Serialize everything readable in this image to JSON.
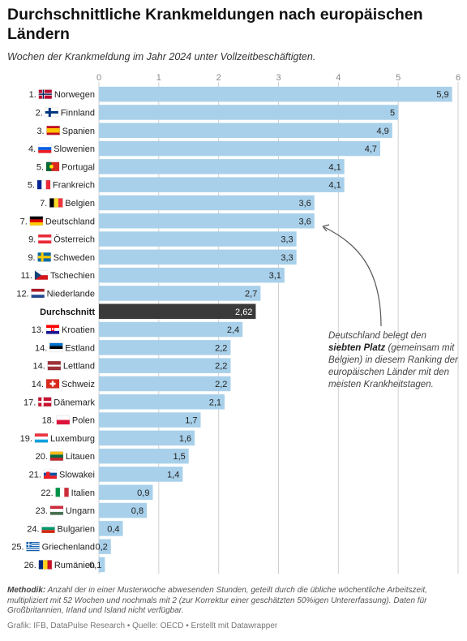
{
  "header": {
    "title": "Durchschnittliche Krankmeldungen nach europäischen Ländern",
    "subtitle": "Wochen der Krankmeldung im Jahr 2024 unter Vollzeitbeschäftigten."
  },
  "annotation": {
    "pre": "Deutschland belegt den",
    "bold": "siebten Platz",
    "post": "(gemeinsam mit Belgien) in diesem Ranking der europäischen Länder mit den meisten Krankheitstagen."
  },
  "footer": {
    "methodik_label": "Methodik:",
    "methodik_text": "Anzahl der in einer Musterwoche abwesenden Stunden, geteilt durch die übliche wöchentliche Arbeitszeit, multipliziert mit 52 Wochen und nochmals mit 2 (zur Korrektur einer geschätzten 50%igen Untererfassung). Daten für Großbritannien, Irland und Island nicht verfügbar.",
    "credit": "Grafik: IFB, DataPulse Research • Quelle: OECD • Erstellt mit Datawrapper"
  },
  "colors": {
    "bar": "#a8d0ea",
    "highlight": "#3a3a3a",
    "grid": "#d0d0d0"
  },
  "chart_data": {
    "type": "bar",
    "orientation": "horizontal",
    "xlim": [
      0,
      6
    ],
    "xticks": [
      "0",
      "1",
      "2",
      "3",
      "4",
      "5",
      "6"
    ],
    "categories": [
      {
        "rank": "1.",
        "name": "Norwegen",
        "value": 5.9,
        "label": "5,9",
        "flag": "flag-norway"
      },
      {
        "rank": "2.",
        "name": "Finnland",
        "value": 5.0,
        "label": "5",
        "flag": "flag-finland"
      },
      {
        "rank": "3.",
        "name": "Spanien",
        "value": 4.9,
        "label": "4,9",
        "flag": "flag-spain"
      },
      {
        "rank": "4.",
        "name": "Slowenien",
        "value": 4.7,
        "label": "4,7",
        "flag": "flag-slovenia"
      },
      {
        "rank": "5.",
        "name": "Portugal",
        "value": 4.1,
        "label": "4,1",
        "flag": "flag-portugal"
      },
      {
        "rank": "5.",
        "name": "Frankreich",
        "value": 4.1,
        "label": "4,1",
        "flag": "flag-france"
      },
      {
        "rank": "7.",
        "name": "Belgien",
        "value": 3.6,
        "label": "3,6",
        "flag": "flag-belgium"
      },
      {
        "rank": "7.",
        "name": "Deutschland",
        "value": 3.6,
        "label": "3,6",
        "flag": "flag-germany"
      },
      {
        "rank": "9.",
        "name": "Österreich",
        "value": 3.3,
        "label": "3,3",
        "flag": "flag-austria"
      },
      {
        "rank": "9.",
        "name": "Schweden",
        "value": 3.3,
        "label": "3,3",
        "flag": "flag-sweden"
      },
      {
        "rank": "11.",
        "name": "Tschechien",
        "value": 3.1,
        "label": "3,1",
        "flag": "flag-czechia"
      },
      {
        "rank": "12.",
        "name": "Niederlande",
        "value": 2.7,
        "label": "2,7",
        "flag": "flag-netherlands"
      },
      {
        "rank": "",
        "name": "Durchschnitt",
        "value": 2.62,
        "label": "2,62",
        "flag": "",
        "highlight": true
      },
      {
        "rank": "13.",
        "name": "Kroatien",
        "value": 2.4,
        "label": "2,4",
        "flag": "flag-croatia"
      },
      {
        "rank": "14.",
        "name": "Estland",
        "value": 2.2,
        "label": "2,2",
        "flag": "flag-estonia"
      },
      {
        "rank": "14.",
        "name": "Lettland",
        "value": 2.2,
        "label": "2,2",
        "flag": "flag-latvia"
      },
      {
        "rank": "14.",
        "name": "Schweiz",
        "value": 2.2,
        "label": "2,2",
        "flag": "flag-switzerland"
      },
      {
        "rank": "17.",
        "name": "Dänemark",
        "value": 2.1,
        "label": "2,1",
        "flag": "flag-denmark"
      },
      {
        "rank": "18.",
        "name": "Polen",
        "value": 1.7,
        "label": "1,7",
        "flag": "flag-poland"
      },
      {
        "rank": "19.",
        "name": "Luxemburg",
        "value": 1.6,
        "label": "1,6",
        "flag": "flag-luxembourg"
      },
      {
        "rank": "20.",
        "name": "Litauen",
        "value": 1.5,
        "label": "1,5",
        "flag": "flag-lithuania"
      },
      {
        "rank": "21.",
        "name": "Slowakei",
        "value": 1.4,
        "label": "1,4",
        "flag": "flag-slovakia"
      },
      {
        "rank": "22.",
        "name": "Italien",
        "value": 0.9,
        "label": "0,9",
        "flag": "flag-italy"
      },
      {
        "rank": "23.",
        "name": "Ungarn",
        "value": 0.8,
        "label": "0,8",
        "flag": "flag-hungary"
      },
      {
        "rank": "24.",
        "name": "Bulgarien",
        "value": 0.4,
        "label": "0,4",
        "flag": "flag-bulgaria"
      },
      {
        "rank": "25.",
        "name": "Griechenland",
        "value": 0.2,
        "label": "0,2",
        "flag": "flag-greece"
      },
      {
        "rank": "26.",
        "name": "Rumänien",
        "value": 0.1,
        "label": "0,1",
        "flag": "flag-romania"
      }
    ]
  }
}
